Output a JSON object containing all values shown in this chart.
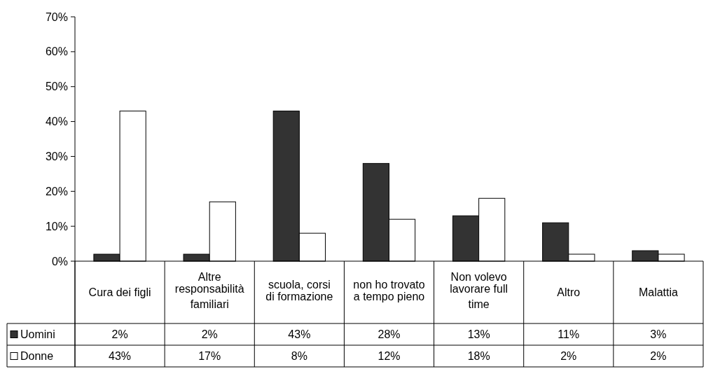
{
  "chart_data": {
    "type": "bar",
    "categories": [
      "Cura dei figli",
      "Altre responsabilità familiari",
      "scuola, corsi di formazione",
      "non ho trovato a tempo pieno",
      "Non volevo lavorare full time",
      "Altro",
      "Malattia"
    ],
    "series": [
      {
        "name": "Uomini",
        "color": "#333333",
        "values": [
          2,
          2,
          43,
          28,
          13,
          11,
          3
        ],
        "value_labels": [
          "2%",
          "2%",
          "43%",
          "28%",
          "13%",
          "11%",
          "3%"
        ]
      },
      {
        "name": "Donne",
        "color": "#ffffff",
        "values": [
          43,
          17,
          8,
          12,
          18,
          2,
          2
        ],
        "value_labels": [
          "43%",
          "17%",
          "8%",
          "12%",
          "18%",
          "2%",
          "2%"
        ]
      }
    ],
    "ylim": [
      0,
      70
    ],
    "yticks": [
      {
        "value": 0,
        "label": "0%"
      },
      {
        "value": 10,
        "label": "10%"
      },
      {
        "value": 20,
        "label": "20%"
      },
      {
        "value": 30,
        "label": "30%"
      },
      {
        "value": 40,
        "label": "40%"
      },
      {
        "value": 50,
        "label": "50%"
      },
      {
        "value": 60,
        "label": "60%"
      },
      {
        "value": 70,
        "label": "70%"
      }
    ],
    "grid": false,
    "legend": "bottom left"
  }
}
